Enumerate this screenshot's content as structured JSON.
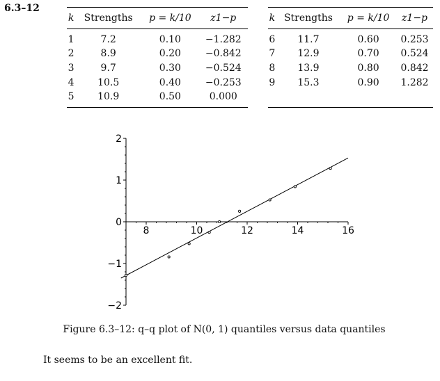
{
  "problem_label": "6.3–12",
  "tables": [
    {
      "headers": [
        "k",
        "Strengths",
        "p = k/10",
        "z1−p"
      ],
      "rows": [
        [
          "1",
          "7.2",
          "0.10",
          "−1.282"
        ],
        [
          "2",
          "8.9",
          "0.20",
          "−0.842"
        ],
        [
          "3",
          "9.7",
          "0.30",
          "−0.524"
        ],
        [
          "4",
          "10.5",
          "0.40",
          "−0.253"
        ],
        [
          "5",
          "10.9",
          "0.50",
          "0.000"
        ]
      ]
    },
    {
      "headers": [
        "k",
        "Strengths",
        "p = k/10",
        "z1−p"
      ],
      "rows": [
        [
          "6",
          "11.7",
          "0.60",
          "0.253"
        ],
        [
          "7",
          "12.9",
          "0.70",
          "0.524"
        ],
        [
          "8",
          "13.9",
          "0.80",
          "0.842"
        ],
        [
          "9",
          "15.3",
          "0.90",
          "1.282"
        ]
      ]
    }
  ],
  "chart_data": {
    "type": "scatter",
    "x_ticks": [
      8,
      10,
      12,
      14,
      16
    ],
    "y_ticks": [
      -2,
      -1,
      0,
      1,
      2
    ],
    "xlim": [
      7,
      16
    ],
    "ylim": [
      -2,
      2
    ],
    "points": [
      {
        "x": 7.2,
        "y": -1.282
      },
      {
        "x": 8.9,
        "y": -0.842
      },
      {
        "x": 9.7,
        "y": -0.524
      },
      {
        "x": 10.5,
        "y": -0.253
      },
      {
        "x": 10.9,
        "y": 0.0
      },
      {
        "x": 11.7,
        "y": 0.253
      },
      {
        "x": 12.9,
        "y": 0.524
      },
      {
        "x": 13.9,
        "y": 0.842
      },
      {
        "x": 15.3,
        "y": 1.282
      }
    ],
    "fit_line": [
      {
        "x": 7.0,
        "y": -1.35
      },
      {
        "x": 16.0,
        "y": 1.53
      }
    ]
  },
  "caption": "Figure 6.3–12: q–q plot of N(0, 1) quantiles versus data quantiles",
  "conclusion": "It seems to be an excellent fit."
}
